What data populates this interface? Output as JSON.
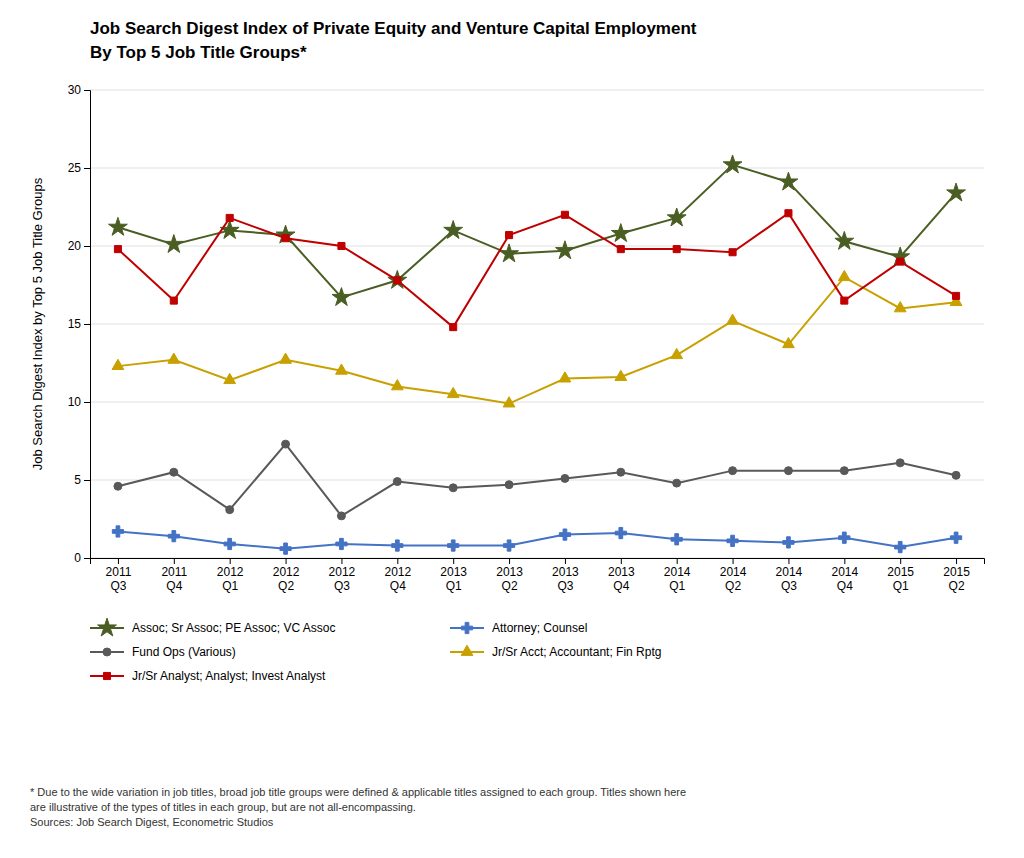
{
  "chart_data": {
    "type": "line",
    "title": "Job Search Digest Index of Private Equity and Venture Capital Employment",
    "subtitle": "By Top 5 Job Title Groups*",
    "y_label": "Job Search Digest Index by Top 5 Job Title Groups",
    "footnote": "* Due to the wide variation in job titles, broad job title groups were defined & applicable titles assigned to each group. Titles shown here\nare illustrative of the types of titles in each group, but are not all-encompassing.\nSources: Job Search Digest, Econometric Studios",
    "categories": [
      "2011\nQ3",
      "2011\nQ4",
      "2012\nQ1",
      "2012\nQ2",
      "2012\nQ3",
      "2012\nQ4",
      "2013\nQ1",
      "2013\nQ2",
      "2013\nQ3",
      "2013\nQ4",
      "2014\nQ1",
      "2014\nQ2",
      "2014\nQ3",
      "2014\nQ4",
      "2015\nQ1",
      "2015\nQ2"
    ],
    "ylim": [
      0,
      30
    ],
    "yticks": [
      0,
      5,
      10,
      15,
      20,
      25,
      30
    ],
    "grid": true,
    "legend": "bottom",
    "series": [
      {
        "name": "Assoc; Sr Assoc; PE Assoc; VC Assoc",
        "color": "#4a5e23",
        "marker": "star",
        "values": [
          21.2,
          20.1,
          21.0,
          20.7,
          16.7,
          17.8,
          21.0,
          19.5,
          19.7,
          20.8,
          21.8,
          25.2,
          24.1,
          20.3,
          19.3,
          23.4
        ]
      },
      {
        "name": "Attorney; Counsel",
        "color": "#4472c4",
        "marker": "plus",
        "values": [
          1.7,
          1.4,
          0.9,
          0.6,
          0.9,
          0.8,
          0.8,
          0.8,
          1.5,
          1.6,
          1.2,
          1.1,
          1.0,
          1.3,
          0.7,
          1.3
        ]
      },
      {
        "name": "Fund Ops (Various)",
        "color": "#595959",
        "marker": "circle",
        "values": [
          4.6,
          5.5,
          3.1,
          7.3,
          2.7,
          4.9,
          4.5,
          4.7,
          5.1,
          5.5,
          4.8,
          5.6,
          5.6,
          5.6,
          6.1,
          5.3
        ]
      },
      {
        "name": "Jr/Sr Acct; Accountant; Fin Rptg",
        "color": "#c8a000",
        "marker": "triangle",
        "values": [
          12.3,
          12.7,
          11.4,
          12.7,
          12.0,
          11.0,
          10.5,
          9.9,
          11.5,
          11.6,
          13.0,
          15.2,
          13.7,
          18.0,
          16.0,
          16.4
        ]
      },
      {
        "name": "Jr/Sr Analyst; Analyst; Invest Analyst",
        "color": "#c00000",
        "marker": "square",
        "values": [
          19.8,
          16.5,
          21.8,
          20.5,
          20.0,
          17.8,
          14.8,
          20.7,
          22.0,
          19.8,
          19.8,
          19.6,
          22.1,
          16.5,
          19.0,
          16.8
        ]
      }
    ]
  }
}
